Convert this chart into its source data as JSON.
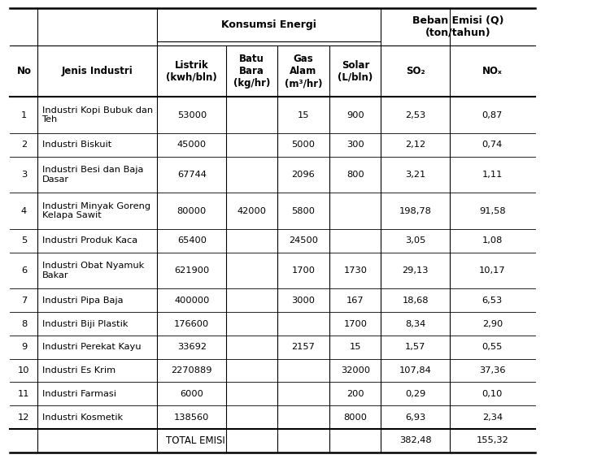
{
  "title_konsumsi": "Konsumsi Energi",
  "title_beban": "Beban Emisi (Q)\n(ton/tahun)",
  "sub_headers": [
    "No",
    "Jenis Industri",
    "Listrik\n(kwh/bln)",
    "Batu\nBara\n(kg/hr)",
    "Gas\nAlam\n(m³/hr)",
    "Solar\n(L/bln)",
    "SO₂",
    "NOₓ"
  ],
  "rows": [
    [
      "1",
      "Industri Kopi Bubuk dan\nTeh",
      "53000",
      "",
      "15",
      "900",
      "2,53",
      "0,87"
    ],
    [
      "2",
      "Industri Biskuit",
      "45000",
      "",
      "5000",
      "300",
      "2,12",
      "0,74"
    ],
    [
      "3",
      "Industri Besi dan Baja\nDasar",
      "67744",
      "",
      "2096",
      "800",
      "3,21",
      "1,11"
    ],
    [
      "4",
      "Industri Minyak Goreng\nKelapa Sawit",
      "80000",
      "42000",
      "5800",
      "",
      "198,78",
      "91,58"
    ],
    [
      "5",
      "Industri Produk Kaca",
      "65400",
      "",
      "24500",
      "",
      "3,05",
      "1,08"
    ],
    [
      "6",
      "Industri Obat Nyamuk\nBakar",
      "621900",
      "",
      "1700",
      "1730",
      "29,13",
      "10,17"
    ],
    [
      "7",
      "Industri Pipa Baja",
      "400000",
      "",
      "3000",
      "167",
      "18,68",
      "6,53"
    ],
    [
      "8",
      "Industri Biji Plastik",
      "176600",
      "",
      "",
      "1700",
      "8,34",
      "2,90"
    ],
    [
      "9",
      "Industri Perekat Kayu",
      "33692",
      "",
      "2157",
      "15",
      "1,57",
      "0,55"
    ],
    [
      "10",
      "Industri Es Krim",
      "2270889",
      "",
      "",
      "32000",
      "107,84",
      "37,36"
    ],
    [
      "11",
      "Industri Farmasi",
      "6000",
      "",
      "",
      "200",
      "0,29",
      "0,10"
    ],
    [
      "12",
      "Industri Kosmetik",
      "138560",
      "",
      "",
      "8000",
      "6,93",
      "2,34"
    ]
  ],
  "total_label": "TOTAL EMISI",
  "total_so2": "382,48",
  "total_nox": "155,32",
  "bg_color": "#ffffff"
}
